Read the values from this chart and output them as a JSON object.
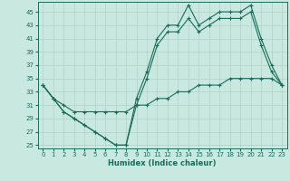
{
  "xlabel": "Humidex (Indice chaleur)",
  "bg_color": "#c8e8e0",
  "line_color": "#1a6b5a",
  "grid_color": "#b0d0c8",
  "hours": [
    0,
    1,
    2,
    3,
    4,
    5,
    6,
    7,
    8,
    9,
    10,
    11,
    12,
    13,
    14,
    15,
    16,
    17,
    18,
    19,
    20,
    21,
    22,
    23
  ],
  "line1": [
    34,
    32,
    30,
    29,
    28,
    27,
    26,
    25,
    25,
    32,
    36,
    41,
    43,
    43,
    46,
    43,
    44,
    45,
    45,
    45,
    46,
    41,
    37,
    34
  ],
  "line2": [
    34,
    32,
    30,
    29,
    28,
    27,
    26,
    25,
    25,
    31,
    35,
    40,
    42,
    42,
    44,
    42,
    43,
    44,
    44,
    44,
    45,
    40,
    36,
    34
  ],
  "line3": [
    34,
    32,
    31,
    30,
    30,
    30,
    30,
    30,
    30,
    31,
    31,
    32,
    32,
    33,
    33,
    34,
    34,
    34,
    35,
    35,
    35,
    35,
    35,
    34
  ],
  "ylim_bottom": 25,
  "ylim_top": 46,
  "yticks": [
    25,
    27,
    29,
    31,
    33,
    35,
    37,
    39,
    41,
    43,
    45
  ],
  "xticks": [
    0,
    1,
    2,
    3,
    4,
    5,
    6,
    7,
    8,
    9,
    10,
    11,
    12,
    13,
    14,
    15,
    16,
    17,
    18,
    19,
    20,
    21,
    22,
    23
  ]
}
